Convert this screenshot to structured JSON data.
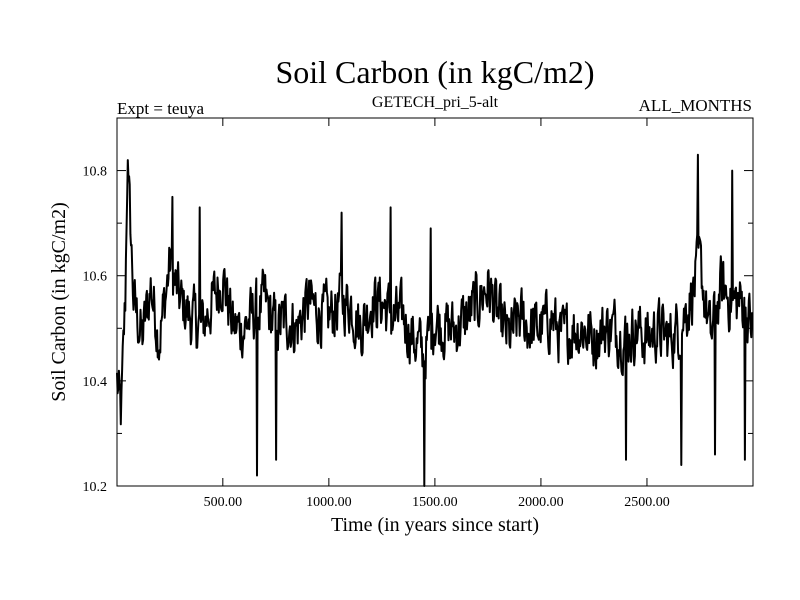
{
  "chart_data": {
    "type": "line",
    "title": "Soil Carbon (in kgC/m2)",
    "subtitle": "GETECH_pri_5-alt",
    "left_note": "Expt = teuya",
    "right_note": "ALL_MONTHS",
    "xlabel": "Time (in years since start)",
    "ylabel": "Soil Carbon (in kgC/m2)",
    "xlim": [
      1,
      3000
    ],
    "ylim": [
      10.2,
      10.9
    ],
    "x_ticks": [
      500,
      1000,
      1500,
      2000,
      2500
    ],
    "x_tick_labels": [
      "500.00",
      "1000.00",
      "1500.00",
      "2000.00",
      "2500.00"
    ],
    "y_ticks": [
      10.2,
      10.4,
      10.6,
      10.8
    ],
    "y_tick_labels": [
      "10.2",
      "10.4",
      "10.6",
      "10.8"
    ],
    "series": [
      {
        "name": "Soil Carbon",
        "color": "#000000",
        "anchors": [
          [
            1,
            10.4
          ],
          [
            20,
            10.33
          ],
          [
            40,
            10.55
          ],
          [
            50,
            10.82
          ],
          [
            80,
            10.55
          ],
          [
            120,
            10.48
          ],
          [
            160,
            10.58
          ],
          [
            200,
            10.48
          ],
          [
            250,
            10.62
          ],
          [
            300,
            10.55
          ],
          [
            350,
            10.52
          ],
          [
            400,
            10.5
          ],
          [
            450,
            10.55
          ],
          [
            500,
            10.6
          ],
          [
            550,
            10.5
          ],
          [
            600,
            10.5
          ],
          [
            650,
            10.53
          ],
          [
            700,
            10.55
          ],
          [
            750,
            10.5
          ],
          [
            800,
            10.52
          ],
          [
            850,
            10.5
          ],
          [
            900,
            10.55
          ],
          [
            950,
            10.53
          ],
          [
            1000,
            10.52
          ],
          [
            1050,
            10.55
          ],
          [
            1100,
            10.55
          ],
          [
            1150,
            10.5
          ],
          [
            1200,
            10.55
          ],
          [
            1250,
            10.55
          ],
          [
            1300,
            10.52
          ],
          [
            1350,
            10.52
          ],
          [
            1400,
            10.48
          ],
          [
            1450,
            10.45
          ],
          [
            1500,
            10.52
          ],
          [
            1550,
            10.5
          ],
          [
            1600,
            10.5
          ],
          [
            1650,
            10.52
          ],
          [
            1700,
            10.55
          ],
          [
            1750,
            10.58
          ],
          [
            1800,
            10.52
          ],
          [
            1850,
            10.48
          ],
          [
            1900,
            10.52
          ],
          [
            1950,
            10.5
          ],
          [
            2000,
            10.5
          ],
          [
            2050,
            10.52
          ],
          [
            2100,
            10.48
          ],
          [
            2150,
            10.5
          ],
          [
            2200,
            10.5
          ],
          [
            2250,
            10.48
          ],
          [
            2300,
            10.5
          ],
          [
            2350,
            10.5
          ],
          [
            2400,
            10.48
          ],
          [
            2450,
            10.5
          ],
          [
            2500,
            10.48
          ],
          [
            2550,
            10.5
          ],
          [
            2600,
            10.48
          ],
          [
            2650,
            10.5
          ],
          [
            2700,
            10.55
          ],
          [
            2750,
            10.62
          ],
          [
            2800,
            10.48
          ],
          [
            2850,
            10.58
          ],
          [
            2900,
            10.55
          ],
          [
            2950,
            10.55
          ],
          [
            3000,
            10.5
          ]
        ],
        "noise_amplitude": 0.09,
        "spikes": [
          [
            50,
            10.82
          ],
          [
            260,
            10.75
          ],
          [
            390,
            10.73
          ],
          [
            660,
            10.22
          ],
          [
            750,
            10.25
          ],
          [
            1060,
            10.72
          ],
          [
            1290,
            10.73
          ],
          [
            1450,
            10.2
          ],
          [
            1480,
            10.69
          ],
          [
            2400,
            10.25
          ],
          [
            2660,
            10.24
          ],
          [
            2740,
            10.83
          ],
          [
            2820,
            10.26
          ],
          [
            2900,
            10.8
          ],
          [
            2960,
            10.25
          ]
        ]
      }
    ]
  }
}
